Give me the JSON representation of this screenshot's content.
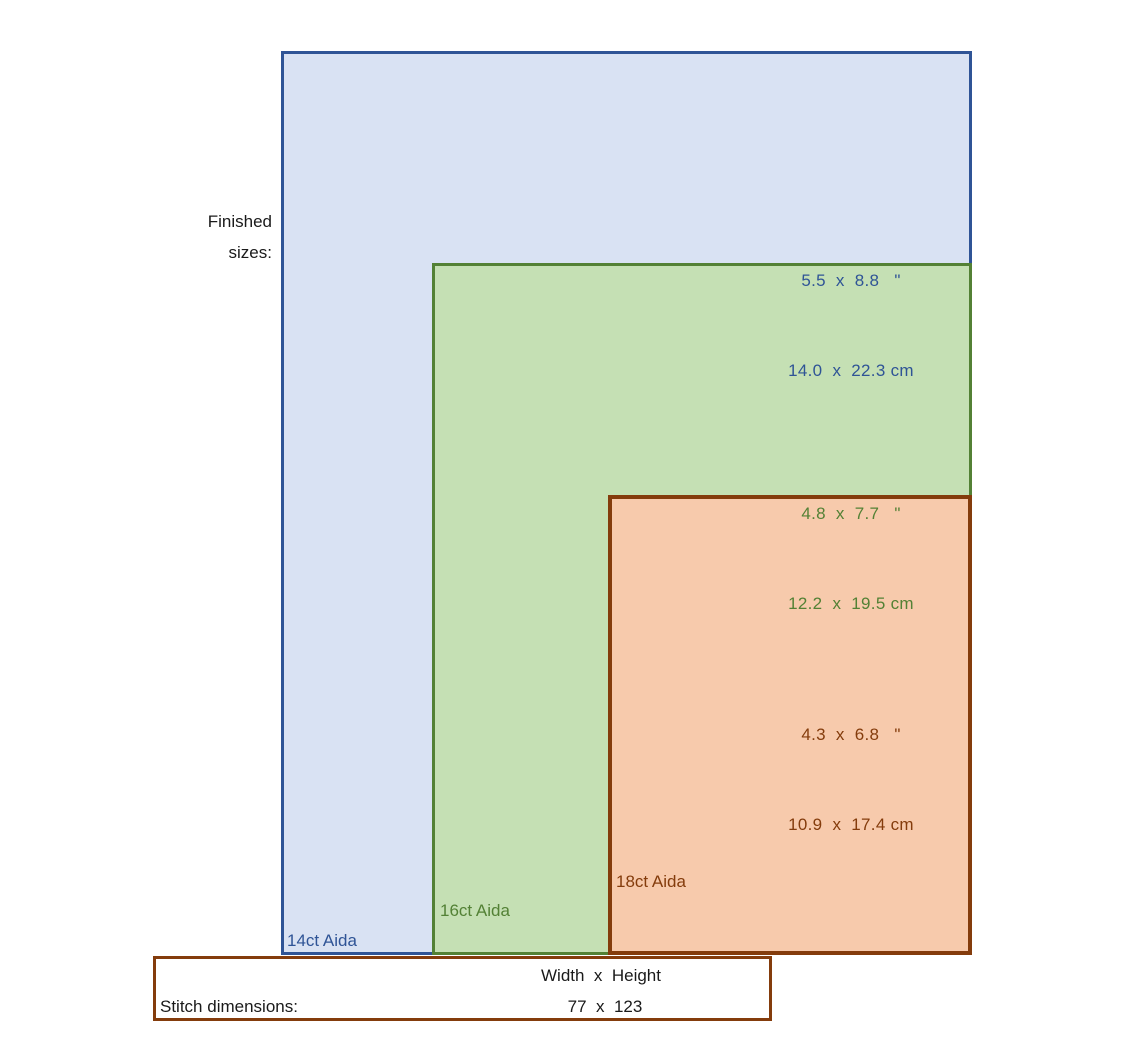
{
  "finished_label": {
    "line1": "Finished",
    "line2": "sizes:"
  },
  "fabrics": [
    {
      "id": "14ct-aida",
      "label": "14ct Aida",
      "inches": "5.5  x  8.8   \"",
      "cm": "14.0  x  22.3 cm",
      "fill": "#D9E2F3",
      "border": "#2F5496",
      "text": "#2F5496"
    },
    {
      "id": "16ct-aida",
      "label": "16ct Aida",
      "inches": "4.8  x  7.7   \"",
      "cm": "12.2  x  19.5 cm",
      "fill": "#C5E0B4",
      "border": "#538135",
      "text": "#538135"
    },
    {
      "id": "18ct-aida",
      "label": "18ct Aida",
      "inches": "4.3  x  6.8   \"",
      "cm": "10.9  x  17.4 cm",
      "fill": "#F7CAAC",
      "border": "#843C0C",
      "text": "#843C0C"
    }
  ],
  "stitch_panel": {
    "header": "Width  x  Height",
    "label": "Stitch dimensions:",
    "value": "77  x  123",
    "border": "#843C0C"
  }
}
